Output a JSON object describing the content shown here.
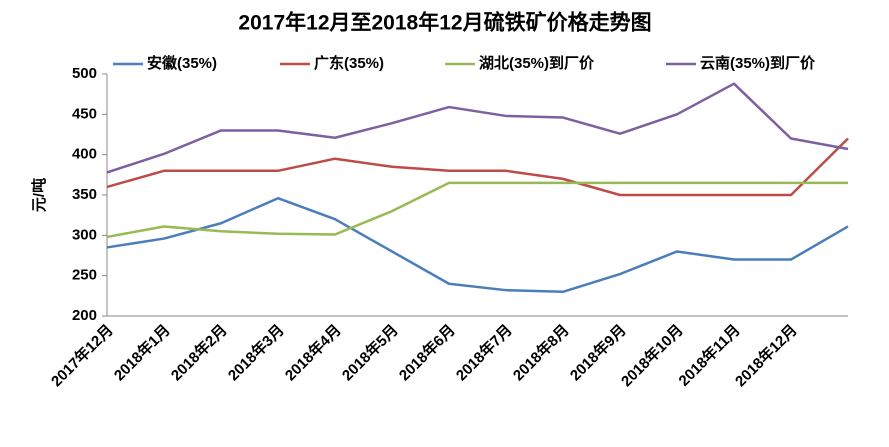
{
  "chart_data": {
    "type": "line",
    "title": "2017年12月至2018年12月硫铁矿价格走势图",
    "y_label": "元/吨",
    "categories": [
      "2017年12月",
      "2018年1月",
      "2018年2月",
      "2018年3月",
      "2018年4月",
      "2018年5月",
      "2018年6月",
      "2018年7月",
      "2018年8月",
      "2018年9月",
      "2018年10月",
      "2018年11月",
      "2018年12月",
      null
    ],
    "series": [
      {
        "name": "安徽(35%)",
        "color": "#4a7ebb",
        "values": [
          285,
          296,
          315,
          346,
          320,
          280,
          240,
          232,
          230,
          252,
          280,
          270,
          270,
          311
        ]
      },
      {
        "name": "广东(35%)",
        "color": "#be4b48",
        "values": [
          360,
          380,
          380,
          380,
          395,
          385,
          380,
          380,
          370,
          350,
          350,
          350,
          350,
          420
        ]
      },
      {
        "name": "湖北(35%)到厂价",
        "color": "#98b954",
        "values": [
          298,
          311,
          305,
          302,
          301,
          330,
          365,
          365,
          365,
          365,
          365,
          365,
          365,
          365
        ]
      },
      {
        "name": "云南(35%)到厂价",
        "color": "#7d60a0",
        "values": [
          378,
          401,
          430,
          430,
          421,
          439,
          459,
          448,
          446,
          426,
          450,
          488,
          420,
          407
        ]
      }
    ],
    "ylim": [
      200,
      500
    ],
    "yticks": [
      200,
      250,
      300,
      350,
      400,
      450,
      500
    ],
    "legend": "top",
    "grid": false
  }
}
